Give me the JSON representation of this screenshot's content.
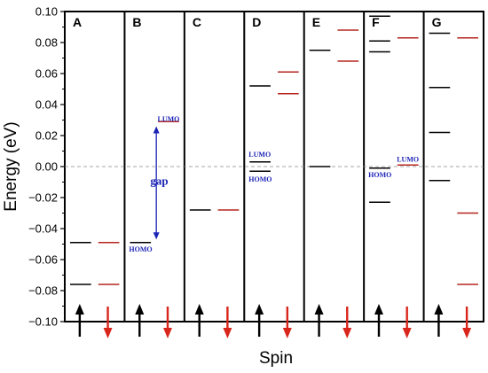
{
  "chart_data": {
    "type": "energy-level diagram",
    "xlabel": "Spin",
    "ylabel": "Energy (eV)",
    "ylim": [
      -0.1,
      0.1
    ],
    "yticks": [
      -0.1,
      -0.08,
      -0.06,
      -0.04,
      -0.02,
      0.0,
      0.02,
      0.04,
      0.06,
      0.08,
      0.1
    ],
    "ytick_labels": [
      "−0.10",
      "−0.08",
      "−0.06",
      "−0.04",
      "−0.02",
      "0.00",
      "0.02",
      "0.04",
      "0.06",
      "0.08",
      "0.10"
    ],
    "zero_line": "dashed",
    "spin_up_color": "#000000",
    "spin_down_color": "#b5261e",
    "arrow_up_color": "#000000",
    "arrow_down_color": "#d9261c",
    "panels": [
      {
        "label": "A",
        "spin_up": [
          -0.049,
          -0.076
        ],
        "spin_down": [
          -0.049,
          -0.076
        ]
      },
      {
        "label": "B",
        "spin_up": [
          -0.049
        ],
        "spin_down": [
          0.029
        ]
      },
      {
        "label": "C",
        "spin_up": [
          -0.028
        ],
        "spin_down": [
          -0.028
        ]
      },
      {
        "label": "D",
        "spin_up": [
          0.052,
          0.003,
          -0.003
        ],
        "spin_down": [
          0.061,
          0.047
        ]
      },
      {
        "label": "E",
        "spin_up": [
          0.075,
          0.0
        ],
        "spin_down": [
          0.088,
          0.068
        ]
      },
      {
        "label": "F",
        "spin_up": [
          0.097,
          0.081,
          0.074,
          -0.001,
          -0.023
        ],
        "spin_down": [
          0.083,
          0.001
        ]
      },
      {
        "label": "G",
        "spin_up": [
          0.086,
          0.051,
          0.022,
          -0.009
        ],
        "spin_down": [
          0.083,
          -0.03,
          -0.076
        ]
      }
    ],
    "annotations": [
      {
        "panel": "B",
        "text": "LUMO",
        "y": 0.031,
        "side": "down"
      },
      {
        "panel": "B",
        "text": "HOMO",
        "y": -0.053,
        "side": "up"
      },
      {
        "panel": "B",
        "text": "gap",
        "y": -0.01,
        "side": "center"
      },
      {
        "panel": "D",
        "text": "LUMO",
        "y": 0.008,
        "side": "up"
      },
      {
        "panel": "D",
        "text": "HOMO",
        "y": -0.008,
        "side": "up"
      },
      {
        "panel": "F",
        "text": "HOMO",
        "y": -0.005,
        "side": "up"
      },
      {
        "panel": "F",
        "text": "LUMO",
        "y": 0.005,
        "side": "down"
      }
    ],
    "gap_arrow": {
      "panel": "B",
      "y_top": 0.026,
      "y_bottom": -0.047,
      "color": "#1a23b5"
    }
  }
}
